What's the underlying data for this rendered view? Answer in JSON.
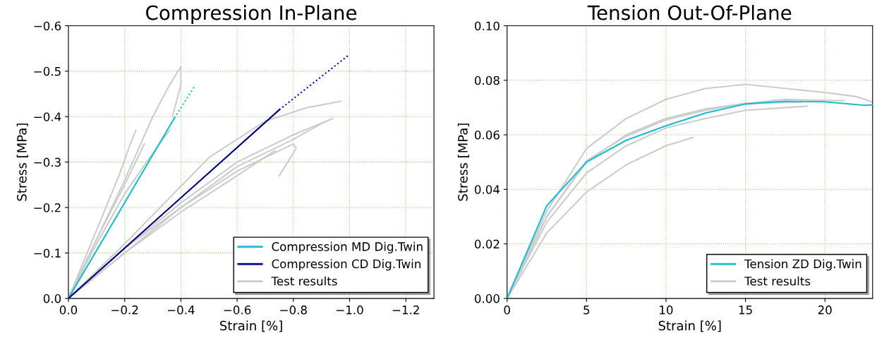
{
  "chart_data": [
    {
      "type": "line",
      "title": "Compression In-Plane",
      "xlabel": "Strain [%]",
      "ylabel": "Stress [MPa]",
      "xlim": [
        0,
        -1.3
      ],
      "ylim": [
        0,
        -0.6
      ],
      "xticks": [
        {
          "value": 0,
          "label": "0.0"
        },
        {
          "value": -0.2,
          "label": "−0.2"
        },
        {
          "value": -0.4,
          "label": "−0.4"
        },
        {
          "value": -0.6,
          "label": "−0.6"
        },
        {
          "value": -0.8,
          "label": "−0.8"
        },
        {
          "value": -1.0,
          "label": "−1.0"
        },
        {
          "value": -1.2,
          "label": "−1.2"
        }
      ],
      "yticks": [
        {
          "value": 0,
          "label": "0.0"
        },
        {
          "value": -0.1,
          "label": "−0.1"
        },
        {
          "value": -0.2,
          "label": "−0.2"
        },
        {
          "value": -0.3,
          "label": "−0.3"
        },
        {
          "value": -0.4,
          "label": "−0.4"
        },
        {
          "value": -0.5,
          "label": "−0.5"
        },
        {
          "value": -0.6,
          "label": "−0.6"
        }
      ],
      "grid": true,
      "legend": "bottom right",
      "series": [
        {
          "color": "#cccccc",
          "x": [
            0,
            -0.1,
            -0.2,
            -0.3,
            -0.36,
            -0.4,
            -0.4,
            -0.37
          ],
          "values": [
            0,
            -0.13,
            -0.26,
            -0.4,
            -0.47,
            -0.51,
            -0.47,
            -0.4
          ]
        },
        {
          "color": "#cccccc",
          "x": [
            0,
            -0.1,
            -0.18,
            -0.22,
            -0.24
          ],
          "values": [
            0,
            -0.15,
            -0.27,
            -0.34,
            -0.37
          ]
        },
        {
          "color": "#cccccc",
          "x": [
            0,
            -0.1,
            -0.2,
            -0.3,
            -0.36
          ],
          "values": [
            0,
            -0.12,
            -0.23,
            -0.32,
            -0.37
          ]
        },
        {
          "color": "#cccccc",
          "x": [
            0,
            -0.1,
            -0.2,
            -0.27
          ],
          "values": [
            0,
            -0.13,
            -0.25,
            -0.34
          ]
        },
        {
          "color": "#cccccc",
          "x": [
            0,
            -0.2,
            -0.5,
            -0.7,
            -0.85,
            -0.97
          ],
          "values": [
            0,
            -0.12,
            -0.31,
            -0.39,
            -0.42,
            -0.434
          ]
        },
        {
          "color": "#cccccc",
          "x": [
            0,
            -0.2,
            -0.4,
            -0.6,
            -0.8,
            -0.94
          ],
          "values": [
            0,
            -0.11,
            -0.21,
            -0.3,
            -0.36,
            -0.396
          ]
        },
        {
          "color": "#cccccc",
          "x": [
            0,
            -0.2,
            -0.4,
            -0.6,
            -0.8,
            -0.91
          ],
          "values": [
            0,
            -0.1,
            -0.2,
            -0.29,
            -0.35,
            -0.388
          ]
        },
        {
          "color": "#cccccc",
          "x": [
            0,
            -0.2,
            -0.4,
            -0.6,
            -0.8,
            -0.81,
            -0.75
          ],
          "values": [
            0,
            -0.11,
            -0.2,
            -0.28,
            -0.34,
            -0.33,
            -0.27
          ]
        },
        {
          "name": "Test results",
          "color": "#cccccc",
          "x": [
            0,
            -0.2,
            -0.4,
            -0.6,
            -0.735
          ],
          "values": [
            0,
            -0.1,
            -0.19,
            -0.27,
            -0.325
          ]
        },
        {
          "name": "Compression MD Dig.Twin",
          "color": "#17becf",
          "x": [
            0,
            -0.377
          ],
          "values": [
            0,
            -0.397
          ]
        },
        {
          "color": "#17becf",
          "line_style": "dotted",
          "x": [
            -0.377,
            -0.45
          ],
          "values": [
            -0.397,
            -0.468
          ]
        },
        {
          "name": "Compression CD Dig.Twin",
          "color": "#000080",
          "x": [
            0,
            -0.75
          ],
          "values": [
            0,
            -0.415
          ]
        },
        {
          "color": "#0000cc",
          "line_style": "dotted",
          "x": [
            -0.75,
            -1.0
          ],
          "values": [
            -0.415,
            -0.537
          ]
        }
      ]
    },
    {
      "type": "line",
      "title": "Tension Out-Of-Plane",
      "xlabel": "Strain [%]",
      "ylabel": "Stress [MPa]",
      "xlim": [
        0,
        23
      ],
      "ylim": [
        0,
        0.1
      ],
      "xticks": [
        0,
        5,
        10,
        15,
        20
      ],
      "yticks": [
        {
          "value": 0,
          "label": "0.00"
        },
        {
          "value": 0.02,
          "label": "0.02"
        },
        {
          "value": 0.04,
          "label": "0.04"
        },
        {
          "value": 0.06,
          "label": "0.06"
        },
        {
          "value": 0.08,
          "label": "0.08"
        },
        {
          "value": 0.1,
          "label": "0.10"
        }
      ],
      "grid": true,
      "legend": "bottom right",
      "series": [
        {
          "color": "#cccccc",
          "x": [
            0,
            2.5,
            5,
            7.5,
            10,
            12.5,
            15,
            17.5,
            20,
            22,
            23
          ],
          "values": [
            0,
            0.032,
            0.055,
            0.066,
            0.073,
            0.077,
            0.0785,
            0.077,
            0.0755,
            0.074,
            0.072
          ]
        },
        {
          "color": "#cccccc",
          "x": [
            0,
            2.5,
            5,
            7.5,
            10,
            12.5,
            15,
            17.5,
            21.2
          ],
          "values": [
            0,
            0.03,
            0.05,
            0.06,
            0.066,
            0.0695,
            0.0715,
            0.073,
            0.0725
          ]
        },
        {
          "color": "#cccccc",
          "x": [
            0,
            2.5,
            5,
            7.5,
            10,
            12.5,
            15,
            18.5
          ],
          "values": [
            0,
            0.03,
            0.0505,
            0.0595,
            0.0655,
            0.069,
            0.0715,
            0.072
          ]
        },
        {
          "color": "#cccccc",
          "x": [
            0,
            2.5,
            5,
            7.5,
            10,
            12.5,
            15,
            18.9
          ],
          "values": [
            0,
            0.028,
            0.046,
            0.056,
            0.0625,
            0.066,
            0.069,
            0.0705
          ]
        },
        {
          "name": "Test results",
          "color": "#cccccc",
          "x": [
            0,
            2.5,
            5,
            7.5,
            10,
            11.7
          ],
          "values": [
            0,
            0.024,
            0.039,
            0.049,
            0.056,
            0.059
          ]
        },
        {
          "name": "Tension ZD Dig.Twin",
          "color": "#17becf",
          "x": [
            0,
            2.5,
            5,
            7.5,
            10,
            12.5,
            15,
            17.5,
            20,
            22.5,
            23
          ],
          "values": [
            0,
            0.034,
            0.05,
            0.058,
            0.0633,
            0.068,
            0.0713,
            0.0723,
            0.0721,
            0.0708,
            0.071
          ]
        }
      ]
    }
  ]
}
